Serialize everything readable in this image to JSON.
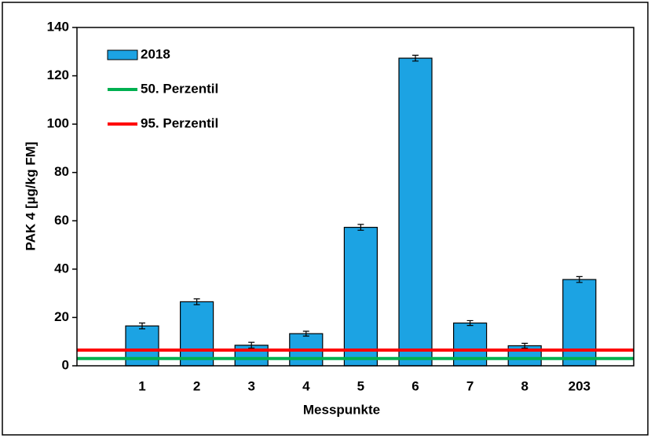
{
  "chart_data": {
    "type": "bar",
    "categories": [
      "1",
      "2",
      "3",
      "4",
      "5",
      "6",
      "7",
      "8",
      "203"
    ],
    "series": [
      {
        "name": "2018",
        "color": "#1ca3e3",
        "values": [
          16.5,
          26.5,
          8.5,
          13.3,
          57.3,
          127.3,
          17.7,
          8.3,
          35.7
        ],
        "errors": [
          1.2,
          1.2,
          1.2,
          1.0,
          1.2,
          1.2,
          1.0,
          1.0,
          1.2
        ]
      }
    ],
    "reference_lines": [
      {
        "name": "50. Perzentil",
        "value": 3,
        "color": "#00b050"
      },
      {
        "name": "95. Perzentil",
        "value": 6.5,
        "color": "#ff0000"
      }
    ],
    "x_label": "Messpunkte",
    "y_label": "PAK 4 [µg/kg FM]",
    "ylim": [
      0,
      140
    ],
    "yticks": [
      0,
      20,
      40,
      60,
      80,
      100,
      120,
      140
    ]
  }
}
